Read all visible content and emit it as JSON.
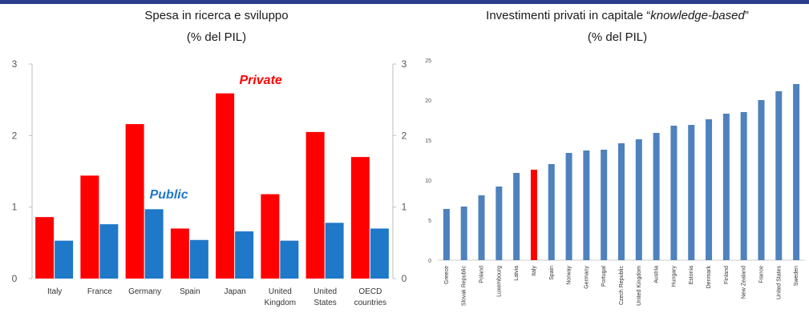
{
  "left_panel": {
    "title_line1": "Spesa in ricerca e sviluppo",
    "title_line2": "(% del PIL)"
  },
  "right_panel": {
    "title_prefix": "Investimenti privati in capitale “",
    "title_italic": "knowledge-based",
    "title_suffix": "”",
    "title_line2": "(% del PIL)"
  },
  "colors": {
    "private": "#ff0000",
    "public": "#1f78c8",
    "bars_right": "#4f81bd",
    "highlight": "#ff0000",
    "header_bar": "#2b3e8c"
  },
  "chart_data": [
    {
      "type": "bar",
      "categories": [
        [
          "Italy"
        ],
        [
          "France"
        ],
        [
          "Germany"
        ],
        [
          "Spain"
        ],
        [
          "Japan"
        ],
        [
          "United",
          "Kingdom"
        ],
        [
          "United",
          "States"
        ],
        [
          "OECD",
          "countries"
        ]
      ],
      "series": [
        {
          "name": "Private",
          "values": [
            0.86,
            1.44,
            2.16,
            0.7,
            2.59,
            1.18,
            2.05,
            1.7
          ]
        },
        {
          "name": "Public",
          "values": [
            0.53,
            0.76,
            0.97,
            0.54,
            0.66,
            0.53,
            0.78,
            0.7
          ]
        }
      ],
      "ylim": [
        0,
        3
      ],
      "yticks": [
        "0",
        "1",
        "2",
        "3"
      ],
      "right_axis_ticks": [
        "0",
        "1",
        "2",
        "3"
      ],
      "series_labels_on_chart": [
        "Private",
        "Public"
      ],
      "grid": false
    },
    {
      "type": "bar",
      "categories": [
        "Greece",
        "Slovak Republic",
        "Poland",
        "Luxembourg",
        "Latvia",
        "Italy",
        "Spain",
        "Norway",
        "Germany",
        "Portugal",
        "Czech Republic",
        "United Kingdom",
        "Austria",
        "Hungary",
        "Estonia",
        "Denmark",
        "Finland",
        "New Zealand",
        "France",
        "United States",
        "Sweden"
      ],
      "values": [
        6.4,
        6.7,
        8.1,
        9.2,
        10.9,
        11.3,
        12.0,
        13.4,
        13.7,
        13.8,
        14.6,
        15.1,
        15.9,
        16.8,
        16.9,
        17.6,
        18.3,
        18.5,
        20.0,
        21.1,
        22.0
      ],
      "highlight_category": "Italy",
      "ylim": [
        0,
        25
      ],
      "yticks": [
        "0",
        "5",
        "10",
        "15",
        "20",
        "25"
      ],
      "grid": false
    }
  ]
}
